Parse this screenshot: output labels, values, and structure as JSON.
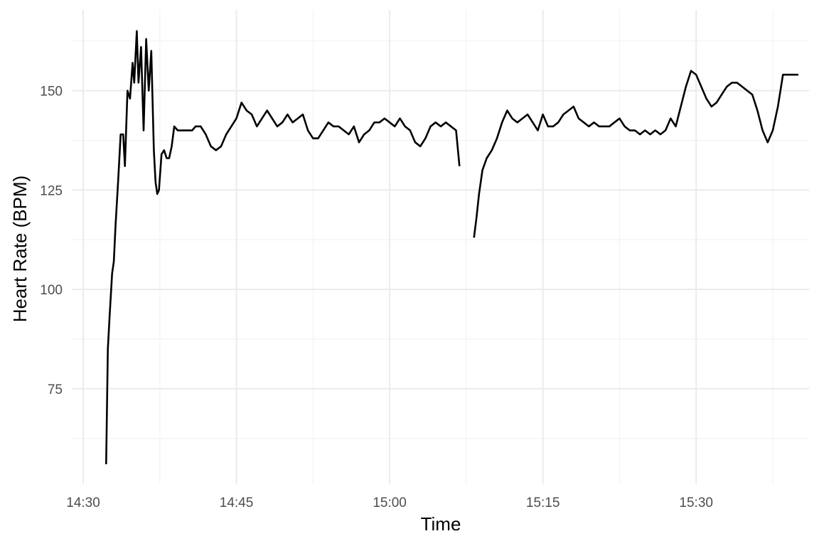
{
  "chart_data": {
    "type": "line",
    "title": "",
    "xlabel": "Time",
    "ylabel": "Heart Rate (BPM)",
    "xlim": [
      "14:30",
      "15:40"
    ],
    "ylim": [
      55,
      165
    ],
    "x_ticks": [
      "14:30",
      "14:45",
      "15:00",
      "15:15",
      "15:30"
    ],
    "y_ticks": [
      75,
      100,
      125,
      150
    ],
    "grid": true,
    "legend": "none",
    "line_color": "#000000",
    "series": [
      {
        "segments": [
          {
            "x": [
              "14:32:15",
              "14:32:25",
              "14:32:35",
              "14:32:50",
              "14:33:00",
              "14:33:10",
              "14:33:25",
              "14:33:40",
              "14:33:55",
              "14:34:05",
              "14:34:20",
              "14:34:35",
              "14:34:50",
              "14:35:00",
              "14:35:15",
              "14:35:25",
              "14:35:40",
              "14:35:55",
              "14:36:10",
              "14:36:25",
              "14:36:40",
              "14:36:55",
              "14:37:05",
              "14:37:15",
              "14:37:25",
              "14:37:40",
              "14:37:55",
              "14:38:10",
              "14:38:25",
              "14:38:40",
              "14:38:55",
              "14:39:15",
              "14:39:40",
              "14:40:10",
              "14:40:40",
              "14:41:00",
              "14:41:30",
              "14:42:00",
              "14:42:30",
              "14:43:00",
              "14:43:30",
              "14:44:00",
              "14:44:30",
              "14:45:00",
              "14:45:30",
              "14:46:00",
              "14:46:30",
              "14:47:00",
              "14:47:30",
              "14:48:00",
              "14:48:30",
              "14:49:00",
              "14:49:30",
              "14:50:00",
              "14:50:30",
              "14:51:00",
              "14:51:30",
              "14:52:00",
              "14:52:30",
              "14:53:00",
              "14:53:30",
              "14:54:00",
              "14:54:30",
              "14:55:00",
              "14:55:30",
              "14:56:00",
              "14:56:30",
              "14:57:00",
              "14:57:30",
              "14:58:00",
              "14:58:30",
              "14:59:00",
              "14:59:30",
              "15:00:00",
              "15:00:30",
              "15:01:00",
              "15:01:30",
              "15:02:00",
              "15:02:30",
              "15:03:00",
              "15:03:30",
              "15:04:00",
              "15:04:30",
              "15:05:00",
              "15:05:30",
              "15:06:00",
              "15:06:30",
              "15:06:50"
            ],
            "y": [
              56,
              85,
              93,
              104,
              107,
              116,
              127,
              139,
              139,
              131,
              150,
              148,
              157,
              152,
              165,
              152,
              161,
              140,
              163,
              150,
              160,
              135,
              127,
              124,
              125,
              134,
              135,
              133,
              133,
              136,
              141,
              140,
              140,
              140,
              140,
              141,
              141,
              139,
              136,
              135,
              136,
              139,
              141,
              143,
              147,
              145,
              144,
              141,
              143,
              145,
              143,
              141,
              142,
              144,
              142,
              143,
              144,
              140,
              138,
              138,
              140,
              142,
              141,
              141,
              140,
              139,
              141,
              137,
              139,
              140,
              142,
              142,
              143,
              142,
              141,
              143,
              141,
              140,
              137,
              136,
              138,
              141,
              142,
              141,
              142,
              141,
              140,
              131
            ]
          },
          {
            "x": [
              "15:08:15",
              "15:08:30",
              "15:08:45",
              "15:09:05",
              "15:09:30",
              "15:10:00",
              "15:10:30",
              "15:11:00",
              "15:11:30",
              "15:12:00",
              "15:12:30",
              "15:13:00",
              "15:13:30",
              "15:14:00",
              "15:14:30",
              "15:15:00",
              "15:15:30",
              "15:16:00",
              "15:16:30",
              "15:17:00",
              "15:17:30",
              "15:18:00",
              "15:18:30",
              "15:19:00",
              "15:19:30",
              "15:20:00",
              "15:20:30",
              "15:21:00",
              "15:21:30",
              "15:22:00",
              "15:22:30",
              "15:23:00",
              "15:23:30",
              "15:24:00",
              "15:24:30",
              "15:25:00",
              "15:25:30",
              "15:26:00",
              "15:26:30",
              "15:27:00",
              "15:27:30",
              "15:28:00",
              "15:28:30",
              "15:29:00",
              "15:29:30",
              "15:30:00",
              "15:30:30",
              "15:31:00",
              "15:31:30",
              "15:32:00",
              "15:32:30",
              "15:33:00",
              "15:33:30",
              "15:34:00",
              "15:34:30",
              "15:35:00",
              "15:35:30",
              "15:36:00",
              "15:36:30",
              "15:37:00",
              "15:37:30",
              "15:38:00",
              "15:38:30",
              "15:39:00",
              "15:39:30",
              "15:40:00"
            ],
            "y": [
              113,
              118,
              124,
              130,
              133,
              135,
              138,
              142,
              145,
              143,
              142,
              143,
              144,
              142,
              140,
              144,
              141,
              141,
              142,
              144,
              145,
              146,
              143,
              142,
              141,
              142,
              141,
              141,
              141,
              142,
              143,
              141,
              140,
              140,
              139,
              140,
              139,
              140,
              139,
              140,
              143,
              141,
              146,
              151,
              155,
              154,
              151,
              148,
              146,
              147,
              149,
              151,
              152,
              152,
              151,
              150,
              149,
              145,
              140,
              137,
              140,
              146,
              154,
              154,
              154,
              154
            ]
          }
        ]
      }
    ]
  }
}
